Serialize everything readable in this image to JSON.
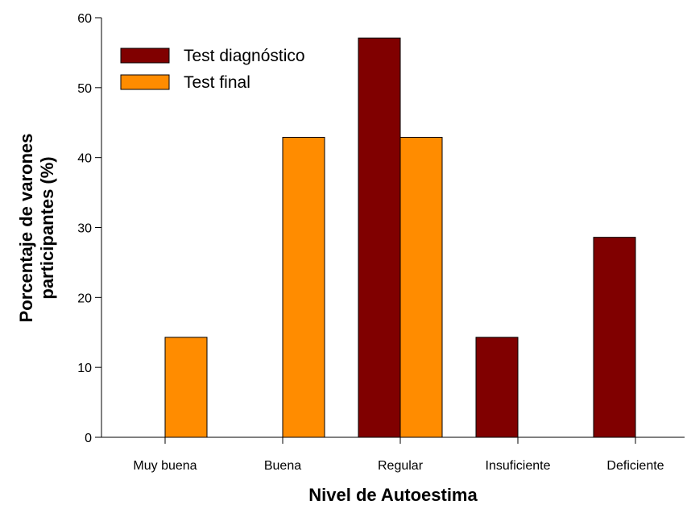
{
  "chart_data": {
    "type": "bar",
    "xlabel": "Nivel de Autoestima",
    "ylabel": [
      "Porcentaje de varones",
      "participantes (%)"
    ],
    "categories": [
      "Muy buena",
      "Buena",
      "Regular",
      "Insuficiente",
      "Deficiente"
    ],
    "series": [
      {
        "name": "Test diagnóstico",
        "color": "#800000",
        "values": [
          0,
          0,
          57.1,
          14.3,
          28.6
        ]
      },
      {
        "name": "Test final",
        "color": "#ff8c00",
        "values": [
          14.3,
          42.9,
          42.9,
          0,
          0
        ]
      }
    ],
    "ylim": [
      0,
      60
    ],
    "yticks": [
      0,
      10,
      20,
      30,
      40,
      50,
      60
    ],
    "legend": "upper left"
  }
}
